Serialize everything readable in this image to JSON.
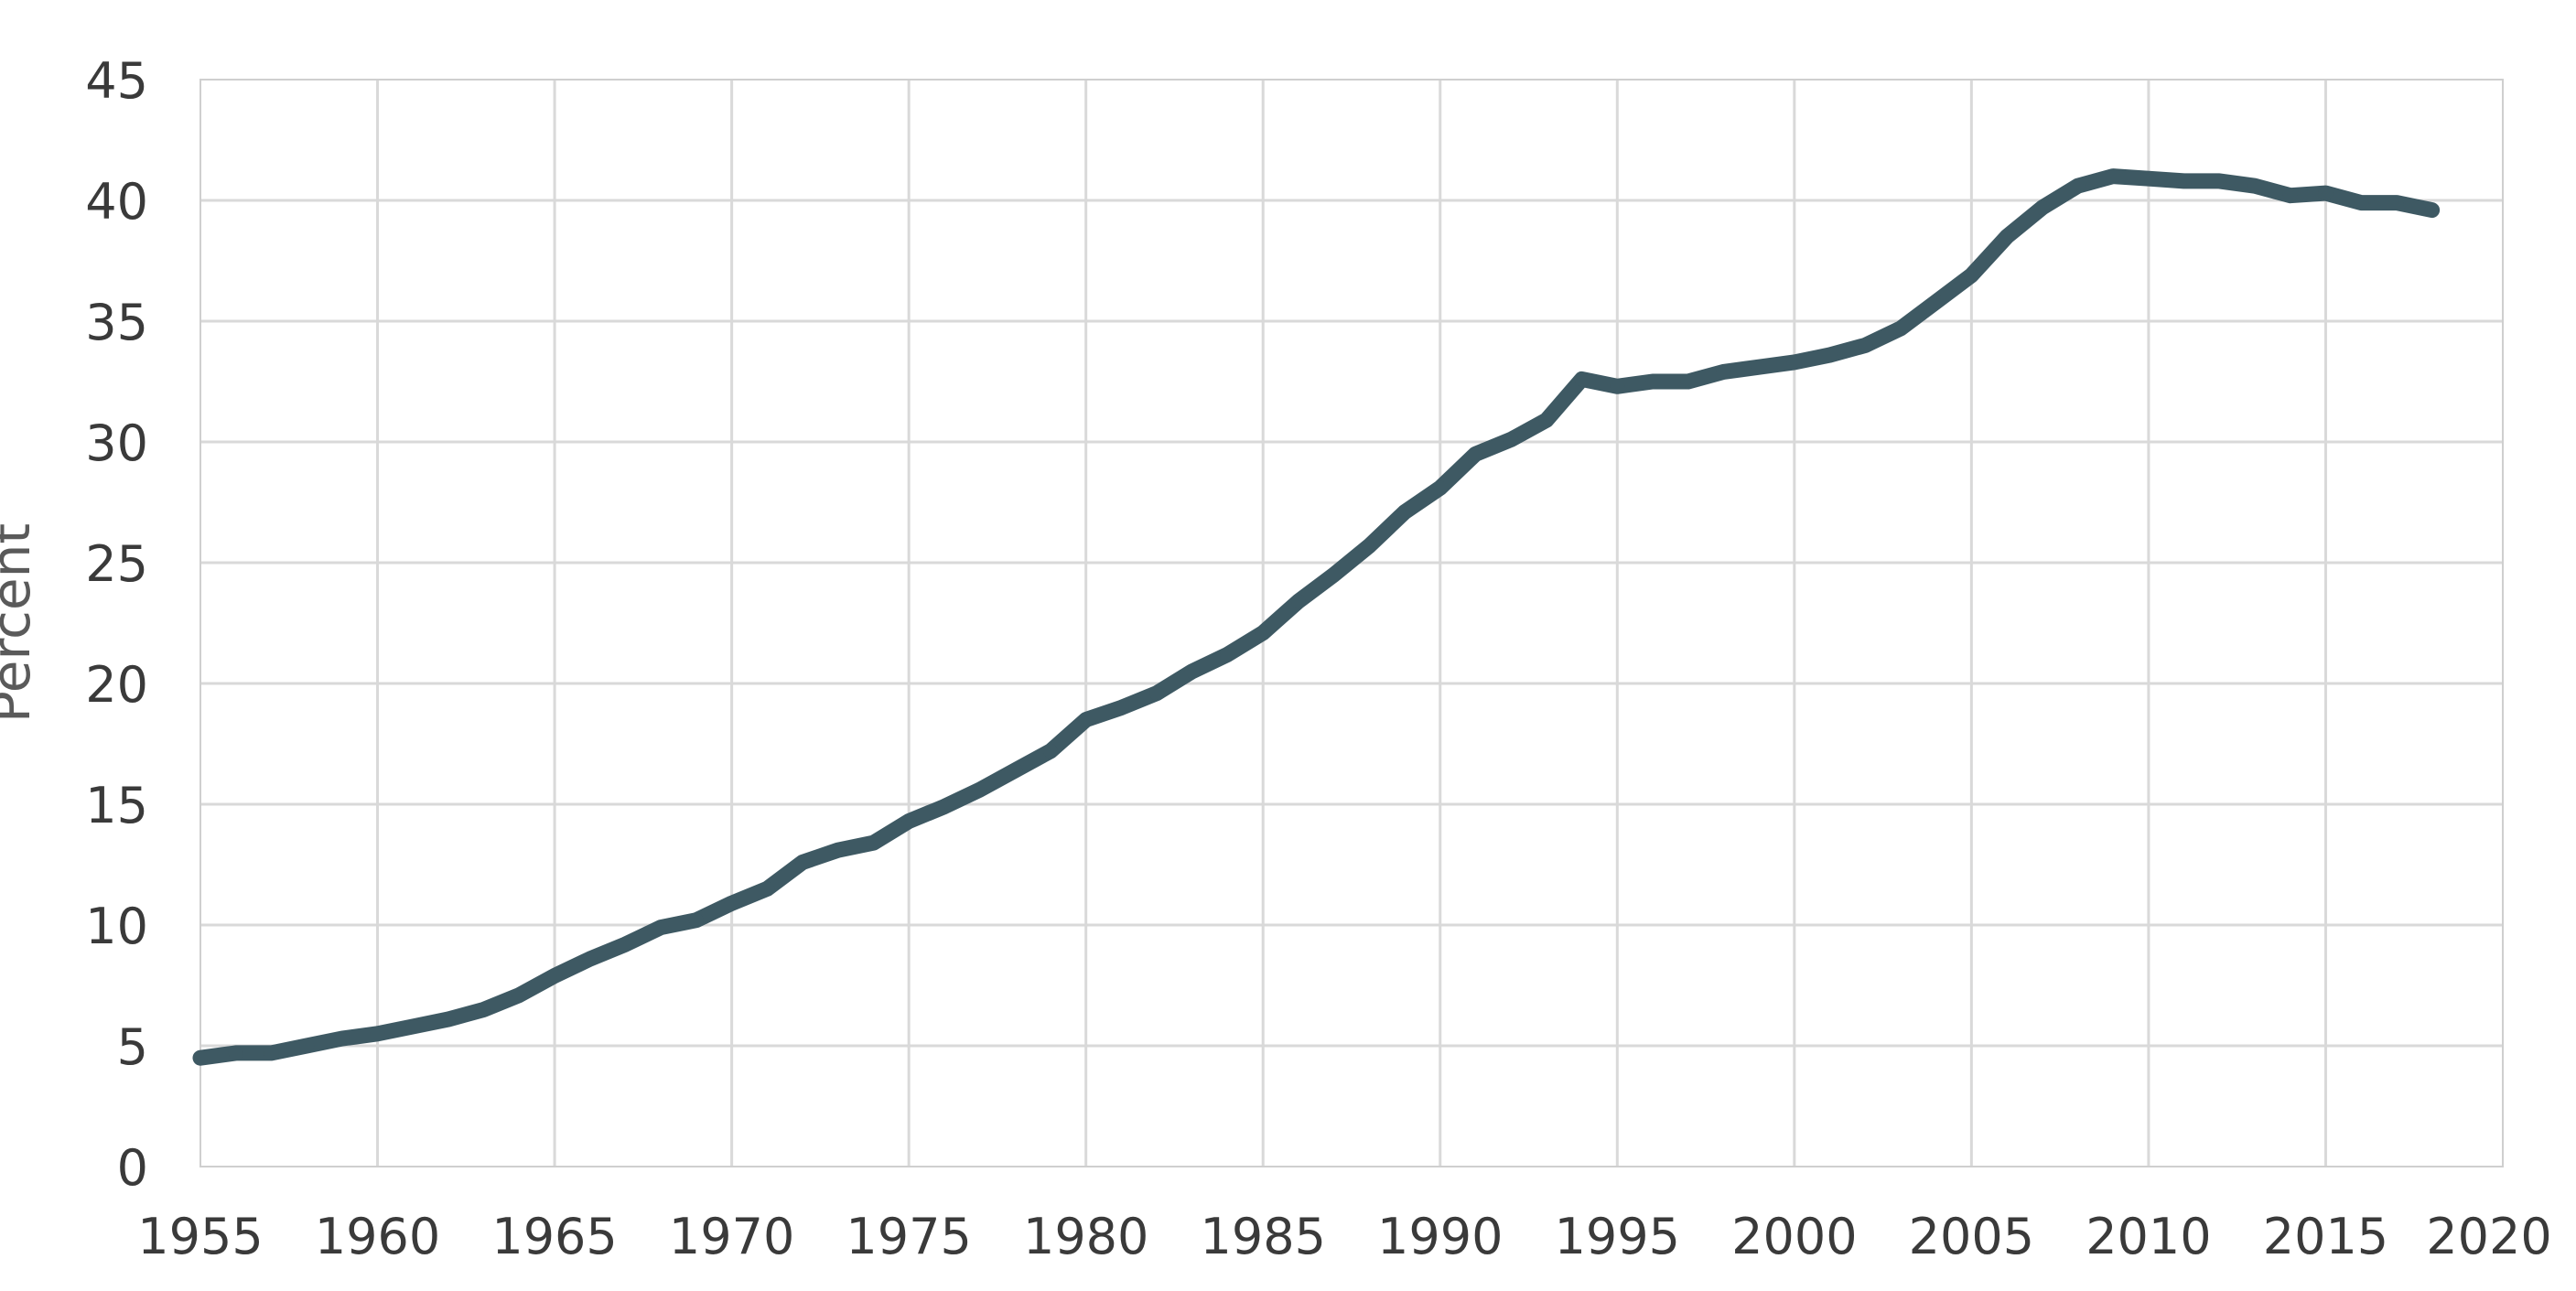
{
  "chart_data": {
    "type": "line",
    "title": "",
    "xlabel": "",
    "ylabel": "Percent",
    "xlim": [
      1955,
      2020
    ],
    "ylim": [
      0,
      45
    ],
    "x_ticks": [
      1955,
      1960,
      1965,
      1970,
      1975,
      1980,
      1985,
      1990,
      1995,
      2000,
      2005,
      2010,
      2015,
      2020
    ],
    "y_ticks": [
      0,
      5,
      10,
      15,
      20,
      25,
      30,
      35,
      40,
      45
    ],
    "x_tick_labels": [
      "1955",
      "1960",
      "1965",
      "1970",
      "1975",
      "1980",
      "1985",
      "1990",
      "1995",
      "2000",
      "2005",
      "2010",
      "2015",
      "2020"
    ],
    "y_tick_labels": [
      "0",
      "5",
      "10",
      "15",
      "20",
      "25",
      "30",
      "35",
      "40",
      "45"
    ],
    "grid": true,
    "legend": "none",
    "line_color": "#3e5963",
    "grid_color": "#d9d9d9",
    "series": [
      {
        "x": [
          1955,
          1956,
          1957,
          1958,
          1959,
          1960,
          1961,
          1962,
          1963,
          1964,
          1965,
          1966,
          1967,
          1968,
          1969,
          1970,
          1971,
          1972,
          1973,
          1974,
          1975,
          1976,
          1977,
          1978,
          1979,
          1980,
          1981,
          1982,
          1983,
          1984,
          1985,
          1986,
          1987,
          1988,
          1989,
          1990,
          1991,
          1992,
          1993,
          1994,
          1995,
          1996,
          1997,
          1998,
          1999,
          2000,
          2001,
          2002,
          2003,
          2004,
          2005,
          2006,
          2007,
          2008,
          2009,
          2010,
          2011,
          2012,
          2013,
          2014,
          2015,
          2016,
          2017,
          2018
        ],
        "y": [
          4.5,
          4.7,
          4.7,
          5.0,
          5.3,
          5.5,
          5.8,
          6.1,
          6.5,
          7.1,
          7.9,
          8.6,
          9.2,
          9.9,
          10.2,
          10.9,
          11.5,
          12.6,
          13.1,
          13.4,
          14.3,
          14.9,
          15.6,
          16.4,
          17.2,
          18.5,
          19.0,
          19.6,
          20.5,
          21.2,
          22.1,
          23.4,
          24.5,
          25.7,
          27.1,
          28.1,
          29.5,
          30.1,
          30.9,
          32.6,
          32.3,
          32.5,
          32.5,
          32.9,
          33.1,
          33.3,
          33.6,
          34.0,
          34.7,
          35.8,
          36.9,
          38.5,
          39.7,
          40.6,
          41.0,
          40.9,
          40.8,
          40.8,
          40.6,
          40.2,
          40.3,
          39.9,
          39.9,
          39.6
        ]
      }
    ]
  }
}
